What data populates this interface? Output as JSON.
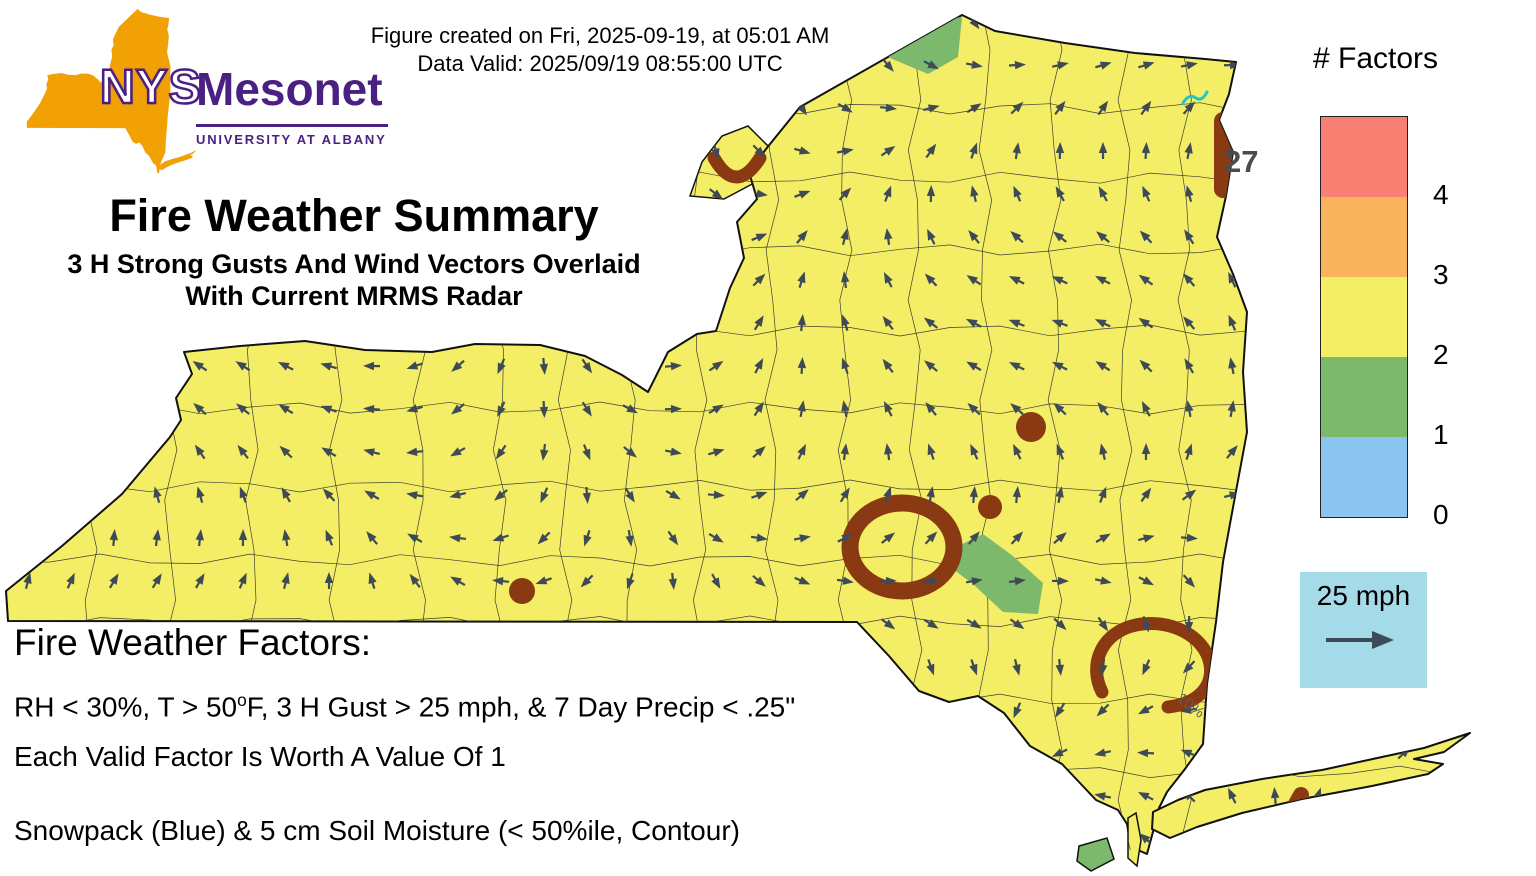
{
  "header": {
    "created_line": "Figure created on Fri, 2025-09-19, at 05:01 AM",
    "valid_line": "Data Valid: 2025/09/19 08:55:00 UTC"
  },
  "logo": {
    "acronym": "NYS",
    "name": "Mesonet",
    "subtitle": "UNIVERSITY AT ALBANY",
    "orange": "#f2a104",
    "purple": "#4a2182"
  },
  "title": {
    "main": "Fire Weather Summary",
    "sub1": "3 H Strong Gusts And Wind Vectors Overlaid",
    "sub2": "With Current MRMS Radar"
  },
  "legend": {
    "title": "# Factors",
    "items": [
      {
        "label": "4",
        "color": "#f97f72"
      },
      {
        "label": "3",
        "color": "#f8b35c"
      },
      {
        "label": "2",
        "color": "#f3ee66"
      },
      {
        "label": "1",
        "color": "#7cb96d"
      },
      {
        "label": "0",
        "color": "#8cc6f0"
      }
    ]
  },
  "wind_legend": {
    "label": "25 mph",
    "box_color": "#a5dbe8"
  },
  "map": {
    "fill_color": "#f3ee66",
    "contour_color": "#8a3a12",
    "arrow_color": "#3e4a56",
    "radar_color": "#17c9c9",
    "station_label": "27",
    "contour_label": "10%"
  },
  "footer": {
    "heading": "Fire Weather Factors:",
    "line1_pre": "RH < 30%, T > 50",
    "line1_sup": "o",
    "line1_post": "F, 3 H Gust > 25 mph, & 7 Day Precip < .25\"",
    "line2": "Each Valid Factor Is Worth A Value Of 1",
    "line3": "Snowpack (Blue) & 5 cm Soil Moisture (< 50%ile, Contour)"
  }
}
